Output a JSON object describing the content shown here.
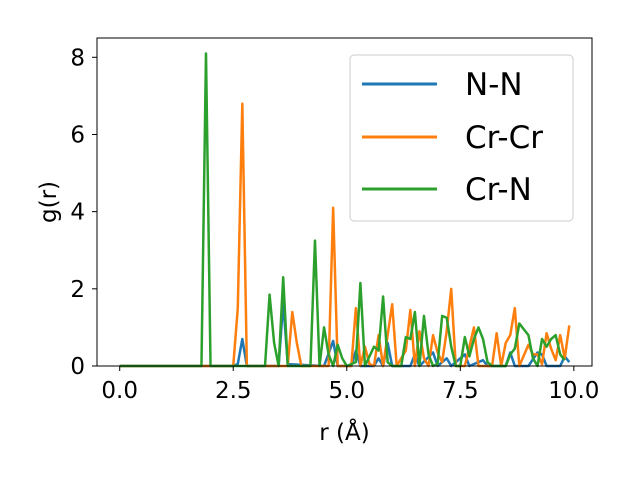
{
  "chart_data": {
    "type": "line",
    "xlabel": "r (Å)",
    "ylabel": "g(r)",
    "xlim": [
      -0.5,
      10.4
    ],
    "ylim": [
      0,
      8.5
    ],
    "xticks": [
      "0.0",
      "2.5",
      "5.0",
      "7.5",
      "10.0"
    ],
    "xtick_values": [
      0,
      2.5,
      5,
      7.5,
      10
    ],
    "yticks": [
      "0",
      "2",
      "4",
      "6",
      "8"
    ],
    "ytick_values": [
      0,
      2,
      4,
      6,
      8
    ],
    "legend_position": "upper right",
    "grid": false,
    "series": [
      {
        "name": "N-N",
        "color": "#1f77b4",
        "points": [
          [
            0.0,
            0
          ],
          [
            2.5,
            0
          ],
          [
            2.6,
            0.05
          ],
          [
            2.7,
            0.7
          ],
          [
            2.8,
            0
          ],
          [
            3.5,
            0
          ],
          [
            3.6,
            1.65
          ],
          [
            3.7,
            0.05
          ],
          [
            4.5,
            0
          ],
          [
            4.7,
            0.65
          ],
          [
            4.8,
            0
          ],
          [
            5.1,
            0
          ],
          [
            5.2,
            0.4
          ],
          [
            5.3,
            0
          ],
          [
            5.6,
            0
          ],
          [
            5.7,
            0.2
          ],
          [
            5.8,
            0
          ],
          [
            5.9,
            0.6
          ],
          [
            6.0,
            0
          ],
          [
            6.4,
            0
          ],
          [
            6.5,
            0.3
          ],
          [
            6.6,
            0
          ],
          [
            6.9,
            0.35
          ],
          [
            7.0,
            0
          ],
          [
            7.2,
            0.2
          ],
          [
            7.3,
            0
          ],
          [
            7.6,
            0.3
          ],
          [
            7.7,
            0
          ],
          [
            8.0,
            0.15
          ],
          [
            8.1,
            0
          ],
          [
            8.5,
            0
          ],
          [
            8.6,
            0.35
          ],
          [
            8.7,
            0
          ],
          [
            9.0,
            0
          ],
          [
            9.2,
            0.35
          ],
          [
            9.3,
            0.3
          ],
          [
            9.4,
            0
          ],
          [
            9.7,
            0
          ],
          [
            9.8,
            0.25
          ],
          [
            9.9,
            0.1
          ]
        ]
      },
      {
        "name": "Cr-Cr",
        "color": "#ff7f0e",
        "points": [
          [
            0.0,
            0
          ],
          [
            2.5,
            0
          ],
          [
            2.6,
            1.5
          ],
          [
            2.7,
            6.8
          ],
          [
            2.8,
            0
          ],
          [
            3.7,
            0
          ],
          [
            3.8,
            1.4
          ],
          [
            3.9,
            0.6
          ],
          [
            4.0,
            0
          ],
          [
            4.6,
            0
          ],
          [
            4.7,
            4.1
          ],
          [
            4.8,
            0
          ],
          [
            5.1,
            0
          ],
          [
            5.2,
            1.5
          ],
          [
            5.3,
            0
          ],
          [
            5.4,
            0.5
          ],
          [
            5.5,
            0.05
          ],
          [
            5.6,
            0
          ],
          [
            5.7,
            0.8
          ],
          [
            5.8,
            0
          ],
          [
            6.0,
            1.6
          ],
          [
            6.1,
            0
          ],
          [
            6.3,
            0.4
          ],
          [
            6.4,
            1.45
          ],
          [
            6.5,
            0
          ],
          [
            6.6,
            0.9
          ],
          [
            6.7,
            0.2
          ],
          [
            6.8,
            0
          ],
          [
            6.9,
            0.8
          ],
          [
            7.0,
            0.35
          ],
          [
            7.1,
            0.1
          ],
          [
            7.2,
            0.9
          ],
          [
            7.3,
            2.0
          ],
          [
            7.4,
            0
          ],
          [
            7.6,
            0
          ],
          [
            7.7,
            0.5
          ],
          [
            7.8,
            1.0
          ],
          [
            7.9,
            0
          ],
          [
            8.2,
            0
          ],
          [
            8.3,
            0.85
          ],
          [
            8.4,
            0
          ],
          [
            8.5,
            0.6
          ],
          [
            8.6,
            0.8
          ],
          [
            8.7,
            1.5
          ],
          [
            8.8,
            0
          ],
          [
            9.0,
            0.55
          ],
          [
            9.1,
            0.3
          ],
          [
            9.2,
            0.3
          ],
          [
            9.3,
            0.05
          ],
          [
            9.4,
            0.85
          ],
          [
            9.5,
            0.45
          ],
          [
            9.6,
            0.15
          ],
          [
            9.7,
            0.8
          ],
          [
            9.8,
            0.2
          ],
          [
            9.9,
            1.05
          ]
        ]
      },
      {
        "name": "Cr-N",
        "color": "#2ca02c",
        "points": [
          [
            0.0,
            0
          ],
          [
            1.8,
            0
          ],
          [
            1.9,
            8.1
          ],
          [
            2.0,
            0
          ],
          [
            3.2,
            0
          ],
          [
            3.3,
            1.85
          ],
          [
            3.4,
            0.6
          ],
          [
            3.5,
            0
          ],
          [
            3.6,
            2.3
          ],
          [
            3.7,
            0
          ],
          [
            4.2,
            0
          ],
          [
            4.3,
            3.25
          ],
          [
            4.4,
            0
          ],
          [
            4.5,
            1.0
          ],
          [
            4.6,
            0.3
          ],
          [
            4.7,
            0
          ],
          [
            4.8,
            0.55
          ],
          [
            4.9,
            0.2
          ],
          [
            5.0,
            0
          ],
          [
            5.2,
            0.1
          ],
          [
            5.3,
            2.15
          ],
          [
            5.4,
            0
          ],
          [
            5.6,
            0.5
          ],
          [
            5.7,
            0.4
          ],
          [
            5.8,
            1.8
          ],
          [
            5.9,
            0.1
          ],
          [
            6.0,
            0
          ],
          [
            6.2,
            0
          ],
          [
            6.3,
            0.75
          ],
          [
            6.4,
            0.7
          ],
          [
            6.5,
            1.4
          ],
          [
            6.6,
            0
          ],
          [
            6.7,
            1.3
          ],
          [
            6.8,
            0.3
          ],
          [
            6.9,
            0
          ],
          [
            7.0,
            0.05
          ],
          [
            7.1,
            1.3
          ],
          [
            7.2,
            1.25
          ],
          [
            7.3,
            0.5
          ],
          [
            7.4,
            0
          ],
          [
            7.5,
            0
          ],
          [
            7.6,
            0.75
          ],
          [
            7.7,
            0.25
          ],
          [
            7.8,
            0.7
          ],
          [
            7.9,
            1.0
          ],
          [
            8.0,
            0.7
          ],
          [
            8.1,
            0.1
          ],
          [
            8.2,
            0
          ],
          [
            8.5,
            0
          ],
          [
            8.6,
            0.3
          ],
          [
            8.7,
            0.45
          ],
          [
            8.8,
            1.1
          ],
          [
            8.9,
            0.95
          ],
          [
            9.0,
            0.8
          ],
          [
            9.1,
            0.2
          ],
          [
            9.2,
            0
          ],
          [
            9.3,
            0.7
          ],
          [
            9.4,
            0.5
          ],
          [
            9.5,
            0.7
          ],
          [
            9.6,
            0.8
          ],
          [
            9.7,
            0.3
          ],
          [
            9.8,
            0.15
          ]
        ]
      }
    ]
  }
}
